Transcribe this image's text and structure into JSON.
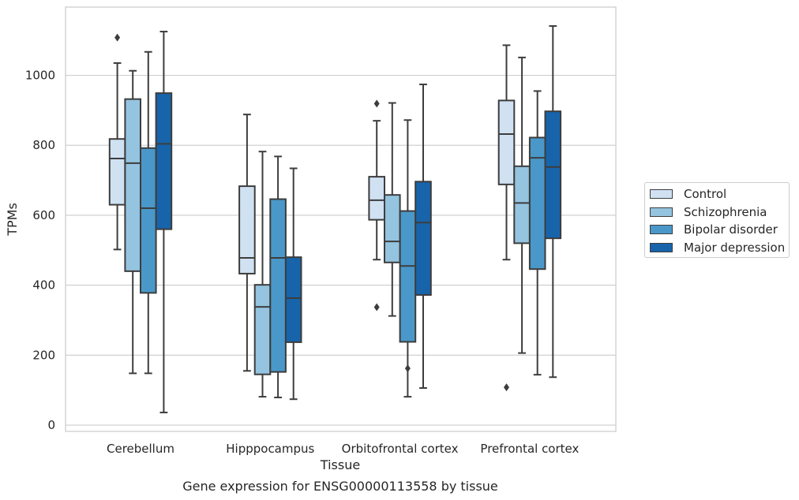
{
  "chart_data": {
    "type": "box",
    "ylabel": "TPMs",
    "xlabel": "Tissue",
    "caption": "Gene expression for ENSG00000113558 by tissue",
    "ylim": [
      -18,
      1195
    ],
    "yticks": [
      0,
      200,
      400,
      600,
      800,
      1000
    ],
    "grid": true,
    "legend_position": "right",
    "categories": [
      "Cerebellum",
      "Hipppocampus",
      "Orbitofrontal cortex",
      "Prefrontal cortex"
    ],
    "series": [
      {
        "name": "Control",
        "color": "#d0e1f2",
        "boxes": [
          {
            "whislo": 502,
            "q1": 630,
            "med": 762,
            "q3": 818,
            "whishi": 1035,
            "fliers": [
              1108
            ]
          },
          {
            "whislo": 155,
            "q1": 433,
            "med": 478,
            "q3": 683,
            "whishi": 888,
            "fliers": []
          },
          {
            "whislo": 473,
            "q1": 587,
            "med": 643,
            "q3": 710,
            "whishi": 870,
            "fliers": [
              919,
              337
            ]
          },
          {
            "whislo": 473,
            "q1": 688,
            "med": 832,
            "q3": 928,
            "whishi": 1086,
            "fliers": [
              108
            ]
          }
        ]
      },
      {
        "name": "Schizophrenia",
        "color": "#94c4df",
        "boxes": [
          {
            "whislo": 148,
            "q1": 440,
            "med": 749,
            "q3": 932,
            "whishi": 1013,
            "fliers": []
          },
          {
            "whislo": 81,
            "q1": 145,
            "med": 338,
            "q3": 401,
            "whishi": 782,
            "fliers": []
          },
          {
            "whislo": 312,
            "q1": 465,
            "med": 525,
            "q3": 658,
            "whishi": 921,
            "fliers": []
          },
          {
            "whislo": 206,
            "q1": 520,
            "med": 635,
            "q3": 740,
            "whishi": 1051,
            "fliers": []
          }
        ]
      },
      {
        "name": "Bipolar disorder",
        "color": "#4a98c9",
        "boxes": [
          {
            "whislo": 148,
            "q1": 378,
            "med": 620,
            "q3": 792,
            "whishi": 1067,
            "fliers": []
          },
          {
            "whislo": 79,
            "q1": 152,
            "med": 478,
            "q3": 646,
            "whishi": 768,
            "fliers": []
          },
          {
            "whislo": 81,
            "q1": 238,
            "med": 455,
            "q3": 612,
            "whishi": 872,
            "fliers": [
              162
            ]
          },
          {
            "whislo": 144,
            "q1": 446,
            "med": 764,
            "q3": 822,
            "whishi": 955,
            "fliers": []
          }
        ]
      },
      {
        "name": "Major depression",
        "color": "#1764ab",
        "boxes": [
          {
            "whislo": 36,
            "q1": 560,
            "med": 804,
            "q3": 949,
            "whishi": 1125,
            "fliers": []
          },
          {
            "whislo": 74,
            "q1": 237,
            "med": 363,
            "q3": 480,
            "whishi": 734,
            "fliers": []
          },
          {
            "whislo": 106,
            "q1": 372,
            "med": 579,
            "q3": 696,
            "whishi": 974,
            "fliers": []
          },
          {
            "whislo": 137,
            "q1": 534,
            "med": 738,
            "q3": 897,
            "whishi": 1141,
            "fliers": []
          }
        ]
      }
    ]
  }
}
